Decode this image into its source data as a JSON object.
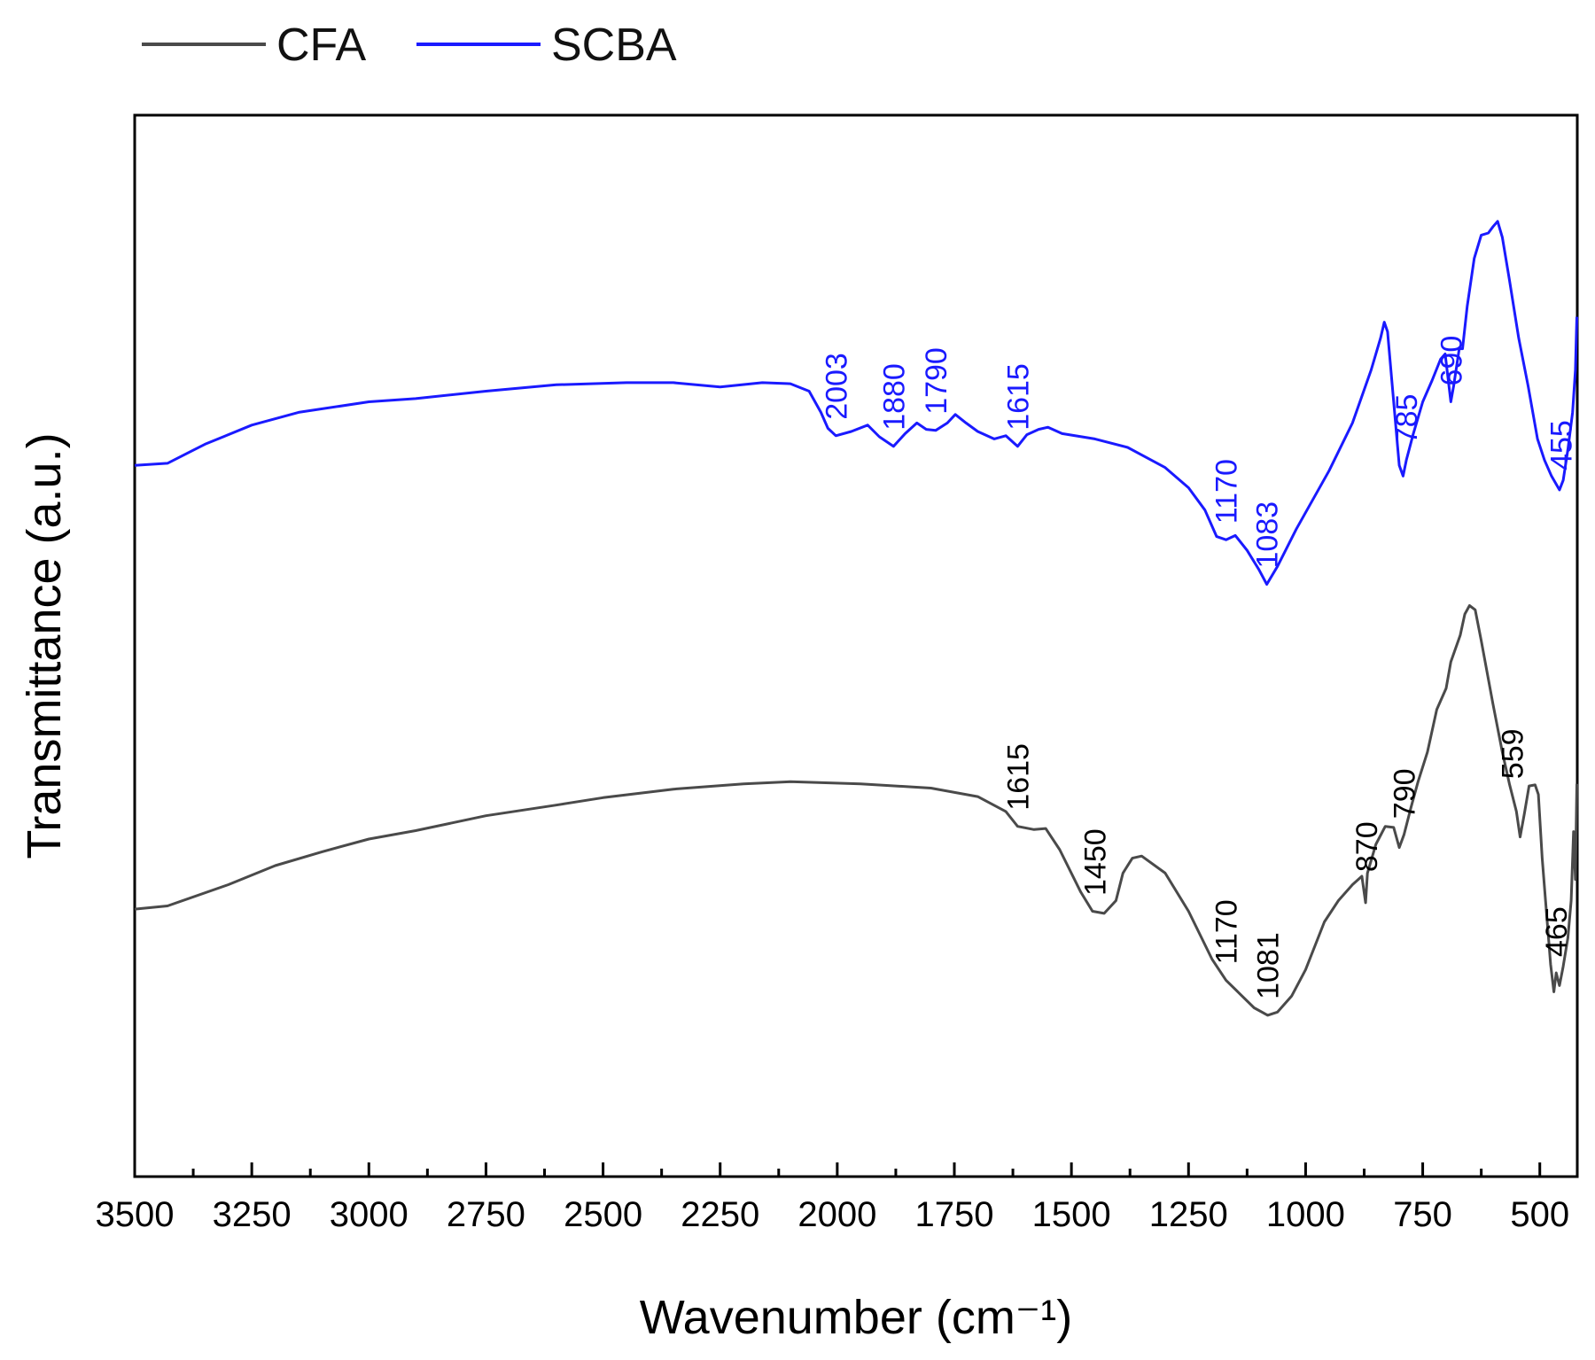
{
  "chart_data": {
    "type": "line",
    "title": "",
    "xlabel": "Wavenumber (cm⁻¹)",
    "ylabel": "Transmittance (a.u.)",
    "xlim": [
      3500,
      420
    ],
    "ylim": [
      0,
      100
    ],
    "x_reversed": true,
    "y_ticks_shown": false,
    "grid": false,
    "legend": {
      "position": "top-left-outside"
    },
    "x_ticks": [
      3500,
      3250,
      3000,
      2750,
      2500,
      2250,
      2000,
      1750,
      1500,
      1250,
      1000,
      750,
      500
    ],
    "series": [
      {
        "name": "CFA",
        "color": "#4a4a4a",
        "points": [
          [
            3500,
            25.2
          ],
          [
            3430,
            25.5
          ],
          [
            3300,
            27.5
          ],
          [
            3200,
            29.3
          ],
          [
            3100,
            30.6
          ],
          [
            3000,
            31.8
          ],
          [
            2900,
            32.6
          ],
          [
            2750,
            34.0
          ],
          [
            2600,
            35.0
          ],
          [
            2500,
            35.7
          ],
          [
            2350,
            36.5
          ],
          [
            2200,
            37.0
          ],
          [
            2100,
            37.2
          ],
          [
            1950,
            37.0
          ],
          [
            1800,
            36.6
          ],
          [
            1700,
            35.8
          ],
          [
            1640,
            34.4
          ],
          [
            1615,
            33.0
          ],
          [
            1580,
            32.7
          ],
          [
            1555,
            32.8
          ],
          [
            1525,
            30.8
          ],
          [
            1480,
            26.8
          ],
          [
            1455,
            25.0
          ],
          [
            1430,
            24.8
          ],
          [
            1405,
            26.0
          ],
          [
            1390,
            28.6
          ],
          [
            1370,
            30.0
          ],
          [
            1350,
            30.2
          ],
          [
            1300,
            28.6
          ],
          [
            1250,
            25.0
          ],
          [
            1200,
            20.5
          ],
          [
            1170,
            18.5
          ],
          [
            1140,
            17.2
          ],
          [
            1110,
            15.9
          ],
          [
            1081,
            15.2
          ],
          [
            1060,
            15.5
          ],
          [
            1030,
            17.0
          ],
          [
            1000,
            19.5
          ],
          [
            960,
            24.0
          ],
          [
            930,
            26.0
          ],
          [
            900,
            27.5
          ],
          [
            880,
            28.3
          ],
          [
            872,
            25.8
          ],
          [
            868,
            28.6
          ],
          [
            850,
            31.3
          ],
          [
            830,
            33.0
          ],
          [
            812,
            32.9
          ],
          [
            800,
            31.0
          ],
          [
            790,
            32.2
          ],
          [
            775,
            34.8
          ],
          [
            760,
            37.2
          ],
          [
            740,
            40.0
          ],
          [
            720,
            44.0
          ],
          [
            700,
            46.0
          ],
          [
            690,
            48.5
          ],
          [
            670,
            51.0
          ],
          [
            660,
            53.0
          ],
          [
            650,
            53.8
          ],
          [
            638,
            53.4
          ],
          [
            625,
            50.5
          ],
          [
            600,
            44.5
          ],
          [
            580,
            40.0
          ],
          [
            565,
            37.0
          ],
          [
            550,
            34.4
          ],
          [
            542,
            32.0
          ],
          [
            533,
            34.2
          ],
          [
            523,
            36.8
          ],
          [
            510,
            36.9
          ],
          [
            503,
            36.0
          ],
          [
            495,
            30.0
          ],
          [
            485,
            24.5
          ],
          [
            477,
            20.0
          ],
          [
            470,
            17.4
          ],
          [
            465,
            19.2
          ],
          [
            458,
            18.0
          ],
          [
            450,
            19.8
          ],
          [
            440,
            22.5
          ],
          [
            433,
            26.0
          ],
          [
            428,
            32.5
          ],
          [
            424,
            28.0
          ],
          [
            421,
            37.0
          ]
        ]
      },
      {
        "name": "SCBA",
        "color": "#1a1aff",
        "points": [
          [
            3500,
            67.0
          ],
          [
            3430,
            67.2
          ],
          [
            3350,
            69.0
          ],
          [
            3250,
            70.8
          ],
          [
            3150,
            72.0
          ],
          [
            3000,
            73.0
          ],
          [
            2900,
            73.3
          ],
          [
            2750,
            74.0
          ],
          [
            2600,
            74.6
          ],
          [
            2450,
            74.8
          ],
          [
            2350,
            74.8
          ],
          [
            2250,
            74.4
          ],
          [
            2160,
            74.8
          ],
          [
            2100,
            74.7
          ],
          [
            2060,
            74.0
          ],
          [
            2035,
            72.0
          ],
          [
            2020,
            70.5
          ],
          [
            2003,
            69.8
          ],
          [
            1970,
            70.2
          ],
          [
            1935,
            70.8
          ],
          [
            1910,
            69.7
          ],
          [
            1880,
            68.8
          ],
          [
            1855,
            70.0
          ],
          [
            1830,
            71.0
          ],
          [
            1810,
            70.4
          ],
          [
            1790,
            70.3
          ],
          [
            1765,
            71.0
          ],
          [
            1748,
            71.8
          ],
          [
            1725,
            71.0
          ],
          [
            1700,
            70.2
          ],
          [
            1665,
            69.5
          ],
          [
            1640,
            69.8
          ],
          [
            1615,
            68.8
          ],
          [
            1595,
            69.9
          ],
          [
            1570,
            70.4
          ],
          [
            1550,
            70.6
          ],
          [
            1520,
            70.0
          ],
          [
            1450,
            69.5
          ],
          [
            1380,
            68.7
          ],
          [
            1300,
            66.8
          ],
          [
            1250,
            64.9
          ],
          [
            1215,
            62.8
          ],
          [
            1190,
            60.3
          ],
          [
            1170,
            60.0
          ],
          [
            1150,
            60.4
          ],
          [
            1125,
            59.0
          ],
          [
            1100,
            57.2
          ],
          [
            1083,
            55.8
          ],
          [
            1060,
            57.5
          ],
          [
            1020,
            61.0
          ],
          [
            950,
            66.5
          ],
          [
            900,
            71.0
          ],
          [
            860,
            76.0
          ],
          [
            840,
            79.0
          ],
          [
            832,
            80.5
          ],
          [
            825,
            79.6
          ],
          [
            812,
            73.0
          ],
          [
            800,
            67.0
          ],
          [
            792,
            66.0
          ],
          [
            785,
            67.5
          ],
          [
            770,
            70.0
          ],
          [
            750,
            73.0
          ],
          [
            730,
            75.0
          ],
          [
            712,
            77.0
          ],
          [
            702,
            77.5
          ],
          [
            690,
            73.0
          ],
          [
            684,
            74.5
          ],
          [
            672,
            78.0
          ],
          [
            665,
            78.0
          ],
          [
            655,
            82.0
          ],
          [
            640,
            86.5
          ],
          [
            625,
            88.7
          ],
          [
            610,
            88.9
          ],
          [
            600,
            89.5
          ],
          [
            590,
            90.0
          ],
          [
            580,
            88.5
          ],
          [
            565,
            84.5
          ],
          [
            545,
            79.0
          ],
          [
            525,
            74.5
          ],
          [
            505,
            69.5
          ],
          [
            490,
            67.5
          ],
          [
            475,
            66.0
          ],
          [
            458,
            64.7
          ],
          [
            450,
            65.6
          ],
          [
            440,
            68.5
          ],
          [
            430,
            72.0
          ],
          [
            424,
            76.0
          ],
          [
            421,
            81.0
          ]
        ]
      }
    ],
    "annotations": [
      {
        "series": "SCBA",
        "text": "2003",
        "x": 2003
      },
      {
        "series": "SCBA",
        "text": "1880",
        "x": 1880
      },
      {
        "series": "SCBA",
        "text": "1790",
        "x": 1790
      },
      {
        "series": "SCBA",
        "text": "1615",
        "x": 1615
      },
      {
        "series": "SCBA",
        "text": "1170",
        "x": 1170
      },
      {
        "series": "SCBA",
        "text": "1083",
        "x": 1083
      },
      {
        "series": "SCBA",
        "text": "785",
        "x": 785
      },
      {
        "series": "SCBA",
        "text": "690",
        "x": 690
      },
      {
        "series": "SCBA",
        "text": "455",
        "x": 455
      },
      {
        "series": "CFA",
        "text": "1615",
        "x": 1615
      },
      {
        "series": "CFA",
        "text": "1450",
        "x": 1450
      },
      {
        "series": "CFA",
        "text": "1170",
        "x": 1170
      },
      {
        "series": "CFA",
        "text": "1081",
        "x": 1081
      },
      {
        "series": "CFA",
        "text": "870",
        "x": 870
      },
      {
        "series": "CFA",
        "text": "790",
        "x": 790
      },
      {
        "series": "CFA",
        "text": "559",
        "x": 559
      },
      {
        "series": "CFA",
        "text": "465",
        "x": 465
      }
    ]
  }
}
